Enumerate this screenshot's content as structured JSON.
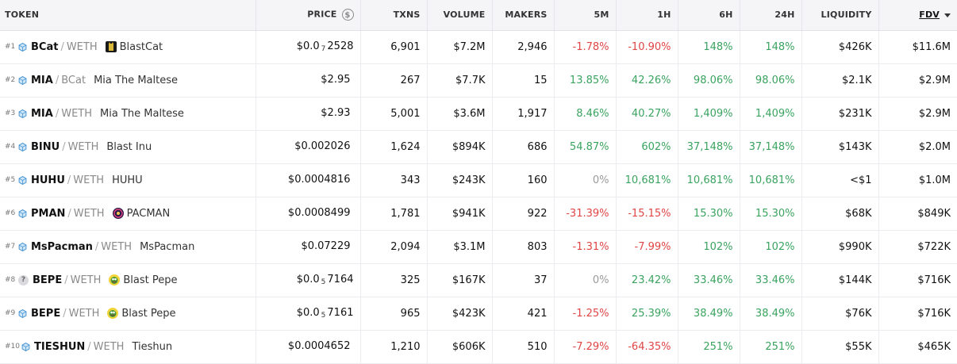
{
  "headers": {
    "token": "TOKEN",
    "price": "PRICE",
    "txns": "TXNS",
    "volume": "VOLUME",
    "makers": "MAKERS",
    "m5": "5M",
    "h1": "1H",
    "h6": "6H",
    "h24": "24H",
    "liquidity": "LIQUIDITY",
    "fdv": "FDV"
  },
  "icons": {
    "chain": "blast-chain-icon",
    "unknown": "question-mark-icon",
    "price_currency": "dollar-circle-icon",
    "sort": "caret-down-icon"
  },
  "colors": {
    "negative": "#e04545",
    "positive": "#3aa35f",
    "neutral": "#9a9a9a"
  },
  "rows": [
    {
      "rank": "#1",
      "base": "BCat",
      "quote": "WETH",
      "name": "BlastCat",
      "logo": "blastcat-logo",
      "chain_icon": "blast",
      "price_prefix": "$0.0",
      "price_sub": "7",
      "price_main": "2528",
      "txns": "6,901",
      "volume": "$7.2M",
      "makers": "2,946",
      "m5": "-1.78%",
      "h1": "-10.90%",
      "h6": "148%",
      "h24": "148%",
      "liquidity": "$426K",
      "fdv": "$11.6M"
    },
    {
      "rank": "#2",
      "base": "MIA",
      "quote": "BCat",
      "name": "Mia The Maltese",
      "logo": "",
      "chain_icon": "blast",
      "price_prefix": "$2.95",
      "price_sub": "",
      "price_main": "",
      "txns": "267",
      "volume": "$7.7K",
      "makers": "15",
      "m5": "13.85%",
      "h1": "42.26%",
      "h6": "98.06%",
      "h24": "98.06%",
      "liquidity": "$2.1K",
      "fdv": "$2.9M"
    },
    {
      "rank": "#3",
      "base": "MIA",
      "quote": "WETH",
      "name": "Mia The Maltese",
      "logo": "",
      "chain_icon": "blast",
      "price_prefix": "$2.93",
      "price_sub": "",
      "price_main": "",
      "txns": "5,001",
      "volume": "$3.6M",
      "makers": "1,917",
      "m5": "8.46%",
      "h1": "40.27%",
      "h6": "1,409%",
      "h24": "1,409%",
      "liquidity": "$231K",
      "fdv": "$2.9M"
    },
    {
      "rank": "#4",
      "base": "BINU",
      "quote": "WETH",
      "name": "Blast Inu",
      "logo": "",
      "chain_icon": "blast",
      "price_prefix": "$0.002026",
      "price_sub": "",
      "price_main": "",
      "txns": "1,624",
      "volume": "$894K",
      "makers": "686",
      "m5": "54.87%",
      "h1": "602%",
      "h6": "37,148%",
      "h24": "37,148%",
      "liquidity": "$143K",
      "fdv": "$2.0M"
    },
    {
      "rank": "#5",
      "base": "HUHU",
      "quote": "WETH",
      "name": "HUHU",
      "logo": "",
      "chain_icon": "blast",
      "price_prefix": "$0.0004816",
      "price_sub": "",
      "price_main": "",
      "txns": "343",
      "volume": "$243K",
      "makers": "160",
      "m5": "0%",
      "h1": "10,681%",
      "h6": "10,681%",
      "h24": "10,681%",
      "liquidity": "<$1",
      "fdv": "$1.0M"
    },
    {
      "rank": "#6",
      "base": "PMAN",
      "quote": "WETH",
      "name": "PACMAN",
      "logo": "pacman-logo",
      "chain_icon": "blast",
      "price_prefix": "$0.0008499",
      "price_sub": "",
      "price_main": "",
      "txns": "1,781",
      "volume": "$941K",
      "makers": "922",
      "m5": "-31.39%",
      "h1": "-15.15%",
      "h6": "15.30%",
      "h24": "15.30%",
      "liquidity": "$68K",
      "fdv": "$849K"
    },
    {
      "rank": "#7",
      "base": "MsPacman",
      "quote": "WETH",
      "name": "MsPacman",
      "logo": "",
      "chain_icon": "blast",
      "price_prefix": "$0.07229",
      "price_sub": "",
      "price_main": "",
      "txns": "2,094",
      "volume": "$3.1M",
      "makers": "803",
      "m5": "-1.31%",
      "h1": "-7.99%",
      "h6": "102%",
      "h24": "102%",
      "liquidity": "$990K",
      "fdv": "$722K"
    },
    {
      "rank": "#8",
      "base": "BEPE",
      "quote": "WETH",
      "name": "Blast Pepe",
      "logo": "blastpepe-logo",
      "chain_icon": "unknown",
      "price_prefix": "$0.0",
      "price_sub": "5",
      "price_main": "7164",
      "txns": "325",
      "volume": "$167K",
      "makers": "37",
      "m5": "0%",
      "h1": "23.42%",
      "h6": "33.46%",
      "h24": "33.46%",
      "liquidity": "$144K",
      "fdv": "$716K"
    },
    {
      "rank": "#9",
      "base": "BEPE",
      "quote": "WETH",
      "name": "Blast Pepe",
      "logo": "blastpepe-logo",
      "chain_icon": "blast",
      "price_prefix": "$0.0",
      "price_sub": "5",
      "price_main": "7161",
      "txns": "965",
      "volume": "$423K",
      "makers": "421",
      "m5": "-1.25%",
      "h1": "25.39%",
      "h6": "38.49%",
      "h24": "38.49%",
      "liquidity": "$76K",
      "fdv": "$716K"
    },
    {
      "rank": "#10",
      "base": "TIESHUN",
      "quote": "WETH",
      "name": "Tieshun",
      "logo": "",
      "chain_icon": "blast",
      "price_prefix": "$0.0004652",
      "price_sub": "",
      "price_main": "",
      "txns": "1,210",
      "volume": "$606K",
      "makers": "510",
      "m5": "-7.29%",
      "h1": "-64.35%",
      "h6": "251%",
      "h24": "251%",
      "liquidity": "$55K",
      "fdv": "$465K"
    }
  ]
}
